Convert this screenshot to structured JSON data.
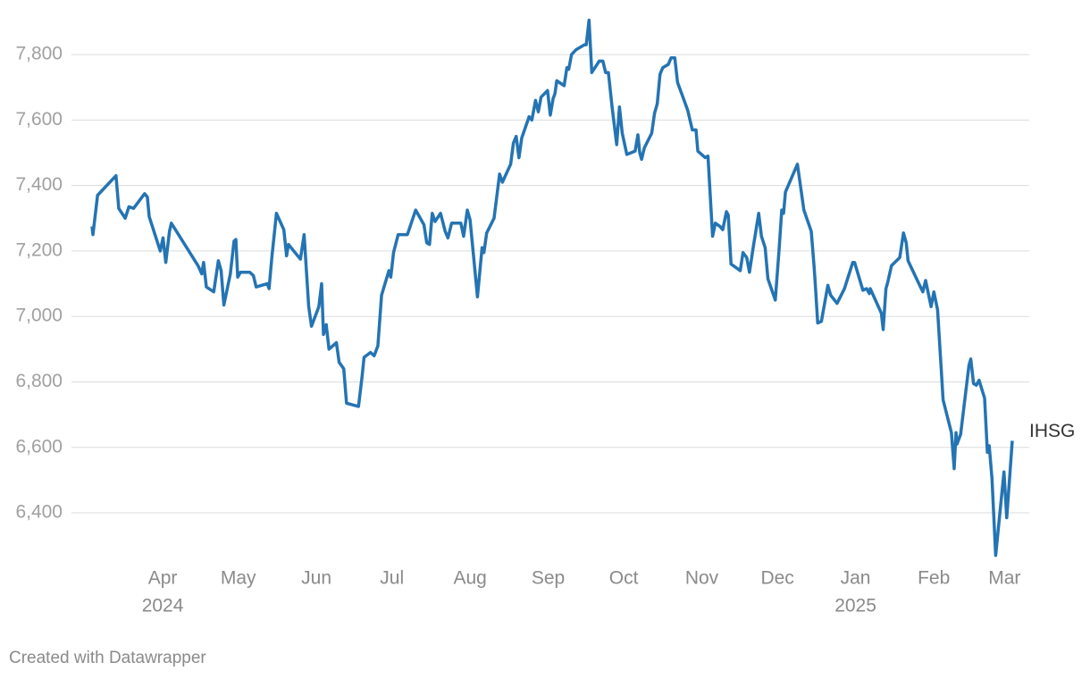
{
  "chart_data": {
    "type": "line",
    "x": [
      2024.172,
      2024.173,
      2024.178,
      2024.198,
      2024.201,
      2024.208,
      2024.212,
      2024.217,
      2024.229,
      2024.232,
      2024.234,
      2024.246,
      2024.249,
      2024.252,
      2024.256,
      2024.258,
      2024.287,
      2024.291,
      2024.293,
      2024.296,
      2024.304,
      2024.309,
      2024.312,
      2024.315,
      2024.322,
      2024.326,
      2024.328,
      2024.33,
      2024.333,
      2024.343,
      2024.347,
      2024.35,
      2024.362,
      2024.364,
      2024.367,
      2024.372,
      2024.38,
      2024.383,
      2024.385,
      2024.398,
      2024.402,
      2024.407,
      2024.41,
      2024.418,
      2024.421,
      2024.423,
      2024.426,
      2024.429,
      2024.437,
      2024.44,
      2024.445,
      2024.448,
      2024.461,
      2024.465,
      2024.467,
      2024.474,
      2024.478,
      2024.482,
      2024.486,
      2024.494,
      2024.496,
      2024.499,
      2024.504,
      2024.514,
      2024.523,
      2024.532,
      2024.535,
      2024.538,
      2024.541,
      2024.544,
      2024.55,
      2024.555,
      2024.558,
      2024.562,
      2024.572,
      2024.575,
      2024.579,
      2024.582,
      2024.59,
      2024.595,
      2024.597,
      2024.6,
      2024.608,
      2024.614,
      2024.617,
      2024.626,
      2024.629,
      2024.632,
      2024.635,
      2024.638,
      2024.646,
      2024.649,
      2024.653,
      2024.656,
      2024.659,
      2024.666,
      2024.669,
      2024.672,
      2024.674,
      2024.676,
      2024.684,
      2024.687,
      2024.689,
      2024.692,
      2024.697,
      2024.706,
      2024.708,
      2024.711,
      2024.714,
      2024.722,
      2024.726,
      2024.729,
      2024.732,
      2024.736,
      2024.741,
      2024.744,
      2024.747,
      2024.752,
      2024.761,
      2024.764,
      2024.766,
      2024.768,
      2024.771,
      2024.779,
      2024.782,
      2024.785,
      2024.788,
      2024.791,
      2024.797,
      2024.8,
      2024.804,
      2024.807,
      2024.818,
      2024.823,
      2024.827,
      2024.829,
      2024.837,
      2024.84,
      2024.845,
      2024.848,
      2024.853,
      2024.856,
      2024.86,
      2024.862,
      2024.865,
      2024.875,
      2024.878,
      2024.882,
      2024.885,
      2024.889,
      2024.895,
      2024.898,
      2024.902,
      2024.905,
      2024.913,
      2024.917,
      2024.92,
      2024.922,
      2024.924,
      2024.937,
      2024.944,
      2024.952,
      2024.955,
      2024.956,
      2024.959,
      2024.963,
      2024.97,
      2024.973,
      2024.98,
      2024.988,
      2024.997,
      2024.999,
      2025.008,
      2025.012,
      2025.015,
      2025.016,
      2025.028,
      2025.03,
      2025.033,
      2025.035,
      2025.039,
      2025.048,
      2025.052,
      2025.055,
      2025.057,
      2025.073,
      2025.076,
      2025.082,
      2025.085,
      2025.089,
      2025.095,
      2025.104,
      2025.107,
      2025.109,
      2025.11,
      2025.114,
      2025.123,
      2025.125,
      2025.128,
      2025.131,
      2025.134,
      2025.14,
      2025.143,
      2025.145,
      2025.148,
      2025.152,
      2025.161,
      2025.164,
      2025.17
    ],
    "series": [
      {
        "name": "IHSG",
        "color": "#2474b3",
        "values": [
          7275,
          7250,
          7370,
          7430,
          7330,
          7300,
          7335,
          7330,
          7375,
          7365,
          7305,
          7200,
          7240,
          7165,
          7260,
          7285,
          7155,
          7130,
          7165,
          7090,
          7075,
          7170,
          7140,
          7035,
          7130,
          7230,
          7235,
          7120,
          7135,
          7135,
          7125,
          7090,
          7100,
          7085,
          7180,
          7315,
          7265,
          7185,
          7220,
          7175,
          7250,
          7030,
          6970,
          7030,
          7100,
          6945,
          6975,
          6900,
          6920,
          6860,
          6840,
          6735,
          6725,
          6820,
          6875,
          6890,
          6880,
          6910,
          7065,
          7140,
          7120,
          7195,
          7250,
          7250,
          7325,
          7280,
          7225,
          7220,
          7315,
          7290,
          7315,
          7260,
          7240,
          7285,
          7285,
          7245,
          7325,
          7295,
          7060,
          7210,
          7195,
          7255,
          7300,
          7435,
          7410,
          7465,
          7530,
          7550,
          7485,
          7545,
          7610,
          7600,
          7660,
          7625,
          7670,
          7690,
          7615,
          7665,
          7680,
          7720,
          7705,
          7760,
          7755,
          7800,
          7815,
          7830,
          7830,
          7905,
          7745,
          7780,
          7780,
          7745,
          7745,
          7640,
          7525,
          7640,
          7560,
          7495,
          7505,
          7555,
          7500,
          7480,
          7515,
          7560,
          7620,
          7650,
          7740,
          7760,
          7770,
          7790,
          7790,
          7715,
          7630,
          7570,
          7570,
          7505,
          7485,
          7490,
          7245,
          7285,
          7275,
          7265,
          7320,
          7310,
          7160,
          7140,
          7195,
          7180,
          7135,
          7210,
          7315,
          7245,
          7210,
          7115,
          7050,
          7200,
          7325,
          7315,
          7380,
          7465,
          7325,
          7260,
          7155,
          7115,
          6980,
          6985,
          7095,
          7065,
          7040,
          7085,
          7165,
          7165,
          7080,
          7085,
          7070,
          7085,
          7010,
          6960,
          7085,
          7105,
          7155,
          7180,
          7255,
          7225,
          7170,
          7075,
          7110,
          7030,
          7075,
          7020,
          6745,
          6645,
          6535,
          6645,
          6610,
          6640,
          6850,
          6870,
          6795,
          6790,
          6805,
          6750,
          6585,
          6605,
          6505,
          6270,
          6525,
          6385,
          6620
        ]
      }
    ],
    "xlim": [
      2024.172,
      2025.17
    ],
    "xticks": [
      {
        "value": 2024.2486,
        "label": "Apr",
        "sublabel": "2024"
      },
      {
        "value": 2024.3306,
        "label": "May"
      },
      {
        "value": 2024.4153,
        "label": "Jun"
      },
      {
        "value": 2024.4973,
        "label": "Jul"
      },
      {
        "value": 2024.582,
        "label": "Aug"
      },
      {
        "value": 2024.6667,
        "label": "Sep"
      },
      {
        "value": 2024.7486,
        "label": "Oct"
      },
      {
        "value": 2024.8333,
        "label": "Nov"
      },
      {
        "value": 2024.9153,
        "label": "Dec"
      },
      {
        "value": 2025.0,
        "label": "Jan",
        "sublabel": "2025"
      },
      {
        "value": 2025.0849,
        "label": "Feb"
      },
      {
        "value": 2025.1616,
        "label": "Mar"
      }
    ],
    "ylim": [
      6250,
      7920
    ],
    "yticks": [
      {
        "value": 6400,
        "label": "6,400"
      },
      {
        "value": 6600,
        "label": "6,600"
      },
      {
        "value": 6800,
        "label": "6,800"
      },
      {
        "value": 7000,
        "label": "7,000"
      },
      {
        "value": 7200,
        "label": "7,200"
      },
      {
        "value": 7400,
        "label": "7,400"
      },
      {
        "value": 7600,
        "label": "7,600"
      },
      {
        "value": 7800,
        "label": "7,800"
      }
    ],
    "grid": true,
    "credit": "Created with Datawrapper"
  }
}
